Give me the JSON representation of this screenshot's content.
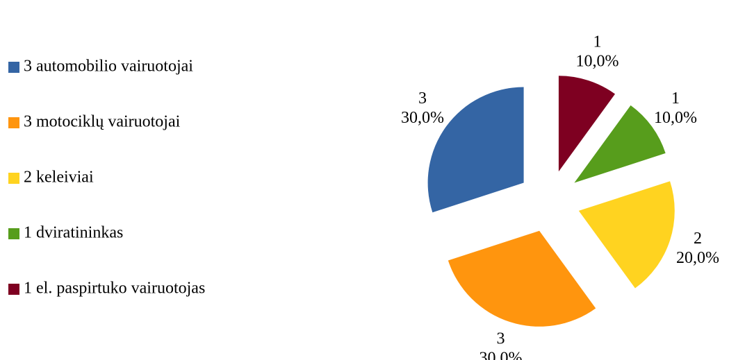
{
  "chart_data": {
    "type": "pie",
    "categories": [
      "3 automobilio vairuotojai",
      "3 motociklų vairuotojai",
      "2 keleiviai",
      "1 dviratininkas",
      "1 el. paspirtuko vairuotojas"
    ],
    "values": [
      3,
      3,
      2,
      1,
      1
    ],
    "percent_values": [
      30,
      30,
      20,
      10,
      10
    ],
    "percent_labels": [
      "30,0%",
      "30,0%",
      "20,0%",
      "10,0%",
      "10,0%"
    ],
    "colors": [
      "#3465a4",
      "#ff950e",
      "#ffd320",
      "#579d1c",
      "#7e0021"
    ],
    "legend": "left"
  }
}
